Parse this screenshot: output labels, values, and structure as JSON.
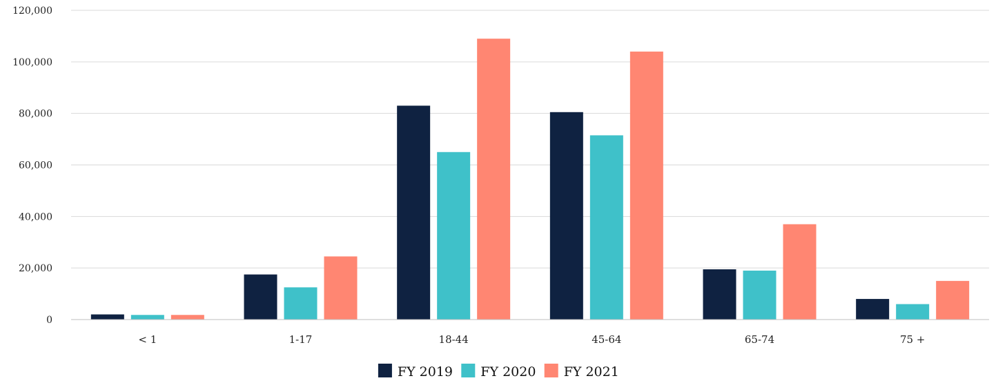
{
  "chart_data": {
    "type": "bar",
    "title": "",
    "xlabel": "",
    "ylabel": "",
    "categories": [
      "< 1",
      "1-17",
      "18-44",
      "45-64",
      "65-74",
      "75 +"
    ],
    "series": [
      {
        "name": "FY 2019",
        "color": "#0f2241",
        "values": [
          2000,
          17500,
          83000,
          80500,
          19500,
          8000
        ]
      },
      {
        "name": "FY 2020",
        "color": "#3fc1c9",
        "values": [
          1800,
          12500,
          65000,
          71500,
          19000,
          6000
        ]
      },
      {
        "name": "FY 2021",
        "color": "#ff8672",
        "values": [
          1800,
          24500,
          109000,
          104000,
          37000,
          15000
        ]
      }
    ],
    "ylim": [
      0,
      120000
    ],
    "yticks": [
      0,
      20000,
      40000,
      60000,
      80000,
      100000,
      120000
    ],
    "ytick_labels": [
      "0",
      "20,000",
      "40,000",
      "60,000",
      "80,000",
      "100,000",
      "120,000"
    ],
    "grid": true,
    "legend_position": "bottom-center"
  }
}
